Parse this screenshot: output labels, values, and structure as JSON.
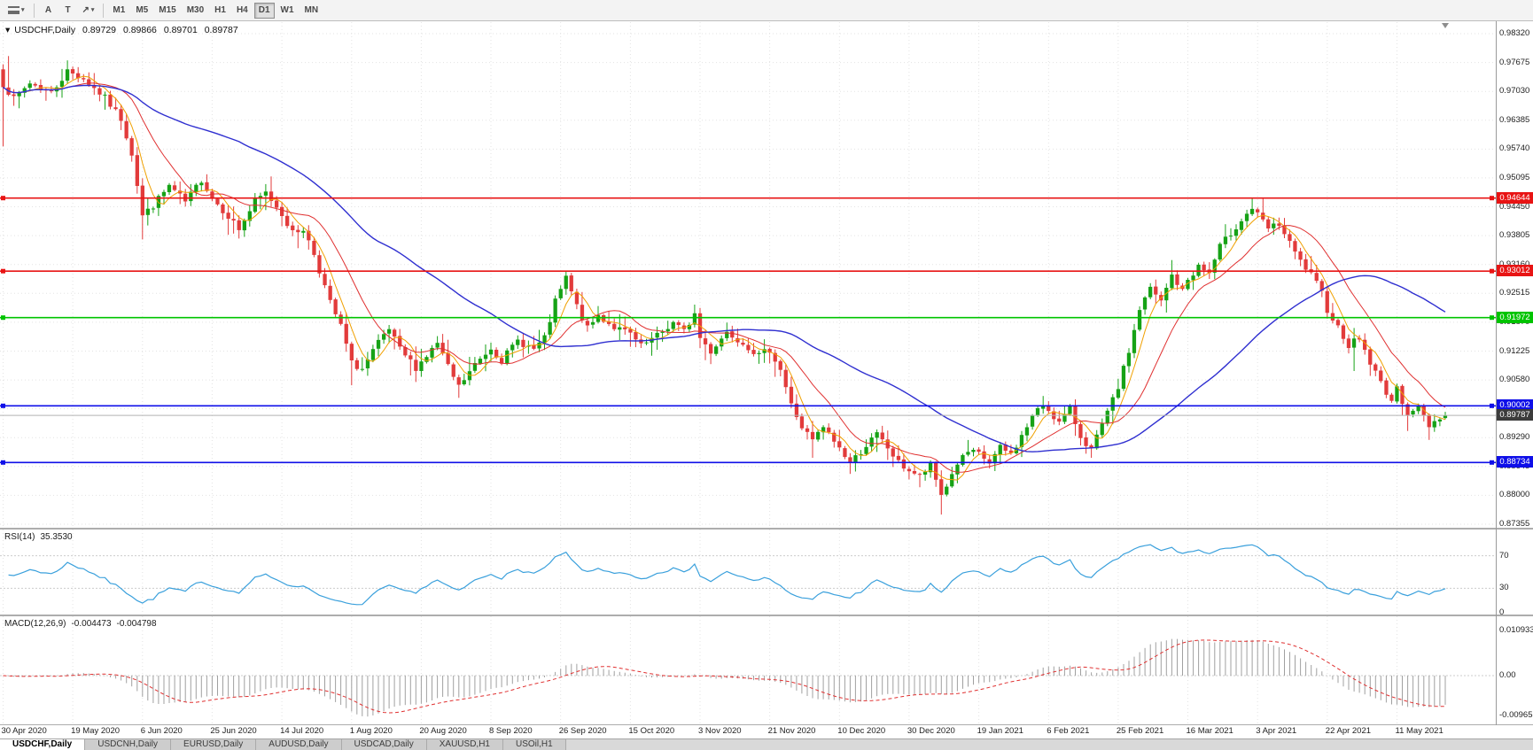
{
  "toolbar": {
    "tools": [
      {
        "name": "cursor-tool",
        "label": "A"
      },
      {
        "name": "text-tool",
        "label": "T"
      },
      {
        "name": "draw-line-tool",
        "label": "↗",
        "caret": true
      }
    ],
    "timeframes": [
      {
        "label": "M1",
        "active": false
      },
      {
        "label": "M5",
        "active": false
      },
      {
        "label": "M15",
        "active": false
      },
      {
        "label": "M30",
        "active": false
      },
      {
        "label": "H1",
        "active": false
      },
      {
        "label": "H4",
        "active": false
      },
      {
        "label": "D1",
        "active": true
      },
      {
        "label": "W1",
        "active": false
      },
      {
        "label": "MN",
        "active": false
      }
    ]
  },
  "chart": {
    "symbol_marker": "▾",
    "title": "USDCHF,Daily",
    "ohlc": {
      "open": "0.89729",
      "high": "0.89866",
      "low": "0.89701",
      "close": "0.89787"
    },
    "axis_labels": [
      "0.98320",
      "0.97675",
      "0.97030",
      "0.96385",
      "0.95740",
      "0.95095",
      "0.94450",
      "0.93805",
      "0.93160",
      "0.92515",
      "0.91870",
      "0.91225",
      "0.90580",
      "0.89935",
      "0.89290",
      "0.88645",
      "0.88000",
      "0.87355"
    ],
    "hlines": [
      {
        "value": 0.94644,
        "label": "0.94644",
        "color": "#e81414"
      },
      {
        "value": 0.93012,
        "label": "0.93012",
        "color": "#e81414"
      },
      {
        "value": 0.91972,
        "label": "0.91972",
        "color": "#00c400"
      },
      {
        "value": 0.90002,
        "label": "0.90002",
        "color": "#0f0fe8"
      },
      {
        "value": 0.88734,
        "label": "0.88734",
        "color": "#0f0fe8"
      }
    ],
    "current_price": {
      "value": 0.89787,
      "label": "0.89787",
      "color": "#3c3c3c"
    },
    "colors": {
      "up": "#16a216",
      "down": "#e23b3b",
      "ma_fast": "#f0a000",
      "ma_mid": "#e03030",
      "ma_slow": "#2f2fd0",
      "grid": "#e3e3e3",
      "rsi": "#3aa0dc",
      "macd_bar": "#a0a0a0",
      "macd_signal": "#e03030"
    }
  },
  "chart_data": {
    "type": "candlestick",
    "symbol": "USDCHF",
    "timeframe": "Daily",
    "candles": 270,
    "y_range": [
      0.87355,
      0.9832
    ],
    "x_labels": [
      "30 Apr 2020",
      "19 May 2020",
      "6 Jun 2020",
      "25 Jun 2020",
      "14 Jul 2020",
      "1 Aug 2020",
      "20 Aug 2020",
      "8 Sep 2020",
      "26 Sep 2020",
      "15 Oct 2020",
      "3 Nov 2020",
      "21 Nov 2020",
      "10 Dec 2020",
      "30 Dec 2020",
      "19 Jan 2021",
      "6 Feb 2021",
      "25 Feb 2021",
      "16 Mar 2021",
      "3 Apr 2021",
      "22 Apr 2021",
      "11 May 2021"
    ],
    "candles_per_tick": 13,
    "ma_periods": {
      "fast": 5,
      "mid": 13,
      "slow": 45
    },
    "anchors": [
      [
        0,
        0.972
      ],
      [
        2,
        0.9685
      ],
      [
        5,
        0.9722
      ],
      [
        9,
        0.97
      ],
      [
        12,
        0.9748
      ],
      [
        15,
        0.9732
      ],
      [
        19,
        0.9688
      ],
      [
        22,
        0.9642
      ],
      [
        24,
        0.9565
      ],
      [
        26,
        0.9425
      ],
      [
        28,
        0.9448
      ],
      [
        31,
        0.9492
      ],
      [
        34,
        0.9455
      ],
      [
        37,
        0.9506
      ],
      [
        39,
        0.9465
      ],
      [
        42,
        0.9425
      ],
      [
        44,
        0.9395
      ],
      [
        47,
        0.9456
      ],
      [
        49,
        0.9476
      ],
      [
        52,
        0.943
      ],
      [
        54,
        0.9386
      ],
      [
        56,
        0.9396
      ],
      [
        58,
        0.934
      ],
      [
        61,
        0.923
      ],
      [
        63,
        0.9178
      ],
      [
        65,
        0.9095
      ],
      [
        67,
        0.9082
      ],
      [
        70,
        0.914
      ],
      [
        72,
        0.917
      ],
      [
        74,
        0.9125
      ],
      [
        77,
        0.9086
      ],
      [
        79,
        0.9112
      ],
      [
        81,
        0.914
      ],
      [
        83,
        0.9086
      ],
      [
        85,
        0.9042
      ],
      [
        88,
        0.9092
      ],
      [
        91,
        0.913
      ],
      [
        93,
        0.9102
      ],
      [
        96,
        0.9146
      ],
      [
        99,
        0.9126
      ],
      [
        101,
        0.915
      ],
      [
        103,
        0.9232
      ],
      [
        105,
        0.9286
      ],
      [
        107,
        0.9222
      ],
      [
        109,
        0.9172
      ],
      [
        111,
        0.9202
      ],
      [
        114,
        0.9176
      ],
      [
        117,
        0.916
      ],
      [
        119,
        0.9132
      ],
      [
        122,
        0.9156
      ],
      [
        125,
        0.9186
      ],
      [
        127,
        0.9166
      ],
      [
        129,
        0.9206
      ],
      [
        130,
        0.9152
      ],
      [
        132,
        0.9122
      ],
      [
        135,
        0.9166
      ],
      [
        138,
        0.9142
      ],
      [
        141,
        0.9112
      ],
      [
        143,
        0.9126
      ],
      [
        145,
        0.9082
      ],
      [
        147,
        0.9002
      ],
      [
        149,
        0.8952
      ],
      [
        151,
        0.8922
      ],
      [
        153,
        0.8952
      ],
      [
        156,
        0.8906
      ],
      [
        158,
        0.8872
      ],
      [
        161,
        0.8912
      ],
      [
        163,
        0.8936
      ],
      [
        165,
        0.8906
      ],
      [
        167,
        0.8872
      ],
      [
        169,
        0.8856
      ],
      [
        171,
        0.8842
      ],
      [
        173,
        0.8866
      ],
      [
        175,
        0.8802
      ],
      [
        176,
        0.8822
      ],
      [
        178,
        0.8872
      ],
      [
        180,
        0.8896
      ],
      [
        182,
        0.8892
      ],
      [
        184,
        0.8872
      ],
      [
        186,
        0.8906
      ],
      [
        188,
        0.8892
      ],
      [
        190,
        0.8932
      ],
      [
        192,
        0.8976
      ],
      [
        194,
        0.9002
      ],
      [
        195,
        0.8992
      ],
      [
        197,
        0.8962
      ],
      [
        199,
        0.8992
      ],
      [
        201,
        0.8932
      ],
      [
        203,
        0.8902
      ],
      [
        205,
        0.8956
      ],
      [
        207,
        0.9012
      ],
      [
        208,
        0.9042
      ],
      [
        210,
        0.9122
      ],
      [
        212,
        0.9216
      ],
      [
        214,
        0.9262
      ],
      [
        216,
        0.9232
      ],
      [
        218,
        0.9292
      ],
      [
        220,
        0.9256
      ],
      [
        221,
        0.9282
      ],
      [
        223,
        0.9312
      ],
      [
        225,
        0.9296
      ],
      [
        227,
        0.9356
      ],
      [
        229,
        0.9386
      ],
      [
        231,
        0.9416
      ],
      [
        233,
        0.9442
      ],
      [
        234,
        0.9426
      ],
      [
        236,
        0.9396
      ],
      [
        238,
        0.9406
      ],
      [
        240,
        0.9362
      ],
      [
        242,
        0.9322
      ],
      [
        244,
        0.9292
      ],
      [
        246,
        0.9252
      ],
      [
        247,
        0.9216
      ],
      [
        249,
        0.9176
      ],
      [
        251,
        0.9136
      ],
      [
        253,
        0.9152
      ],
      [
        255,
        0.9096
      ],
      [
        257,
        0.9052
      ],
      [
        259,
        0.9012
      ],
      [
        260,
        0.9036
      ],
      [
        262,
        0.8986
      ],
      [
        264,
        0.8996
      ],
      [
        266,
        0.8956
      ],
      [
        268,
        0.8976
      ],
      [
        269,
        0.89787
      ]
    ],
    "spikes": [
      {
        "i": 0,
        "low": 0.958
      },
      {
        "i": 1,
        "high": 0.9782
      },
      {
        "i": 12,
        "high": 0.9766
      },
      {
        "i": 26,
        "low": 0.9372
      },
      {
        "i": 44,
        "low": 0.9374
      },
      {
        "i": 65,
        "low": 0.9046
      },
      {
        "i": 85,
        "low": 0.9018
      },
      {
        "i": 105,
        "high": 0.9297
      },
      {
        "i": 151,
        "low": 0.8884
      },
      {
        "i": 158,
        "low": 0.8848
      },
      {
        "i": 171,
        "low": 0.8818
      },
      {
        "i": 175,
        "low": 0.8757
      },
      {
        "i": 194,
        "high": 0.9022
      },
      {
        "i": 203,
        "low": 0.8884
      },
      {
        "i": 218,
        "high": 0.9326
      },
      {
        "i": 233,
        "high": 0.94644
      },
      {
        "i": 252,
        "low": 0.9078
      },
      {
        "i": 262,
        "low": 0.8944
      },
      {
        "i": 266,
        "low": 0.8924
      }
    ],
    "last": {
      "o": 0.89729,
      "h": 0.89866,
      "l": 0.89701,
      "c": 0.89787
    }
  },
  "rsi": {
    "label": "RSI(14)",
    "value": "35.3530",
    "period": 14,
    "axis": [
      {
        "label": "70",
        "value": 70
      },
      {
        "label": "30",
        "value": 30
      },
      {
        "label": "0",
        "value": 0
      }
    ]
  },
  "macd": {
    "label": "MACD(12,26,9)",
    "value_main": "-0.004473",
    "value_signal": "-0.004798",
    "fast": 12,
    "slow": 26,
    "signal": 9,
    "axis": [
      {
        "label": "0.010933",
        "value": 0.010933
      },
      {
        "label": "0.00",
        "value": 0
      },
      {
        "label": "-0.009653",
        "value": -0.009653
      }
    ]
  },
  "tabs": [
    {
      "label": "USDCHF,Daily",
      "active": true
    },
    {
      "label": "USDCNH,Daily",
      "active": false
    },
    {
      "label": "EURUSD,Daily",
      "active": false
    },
    {
      "label": "AUDUSD,Daily",
      "active": false
    },
    {
      "label": "USDCAD,Daily",
      "active": false
    },
    {
      "label": "XAUUSD,H1",
      "active": false
    },
    {
      "label": "USOil,H1",
      "active": false
    }
  ]
}
